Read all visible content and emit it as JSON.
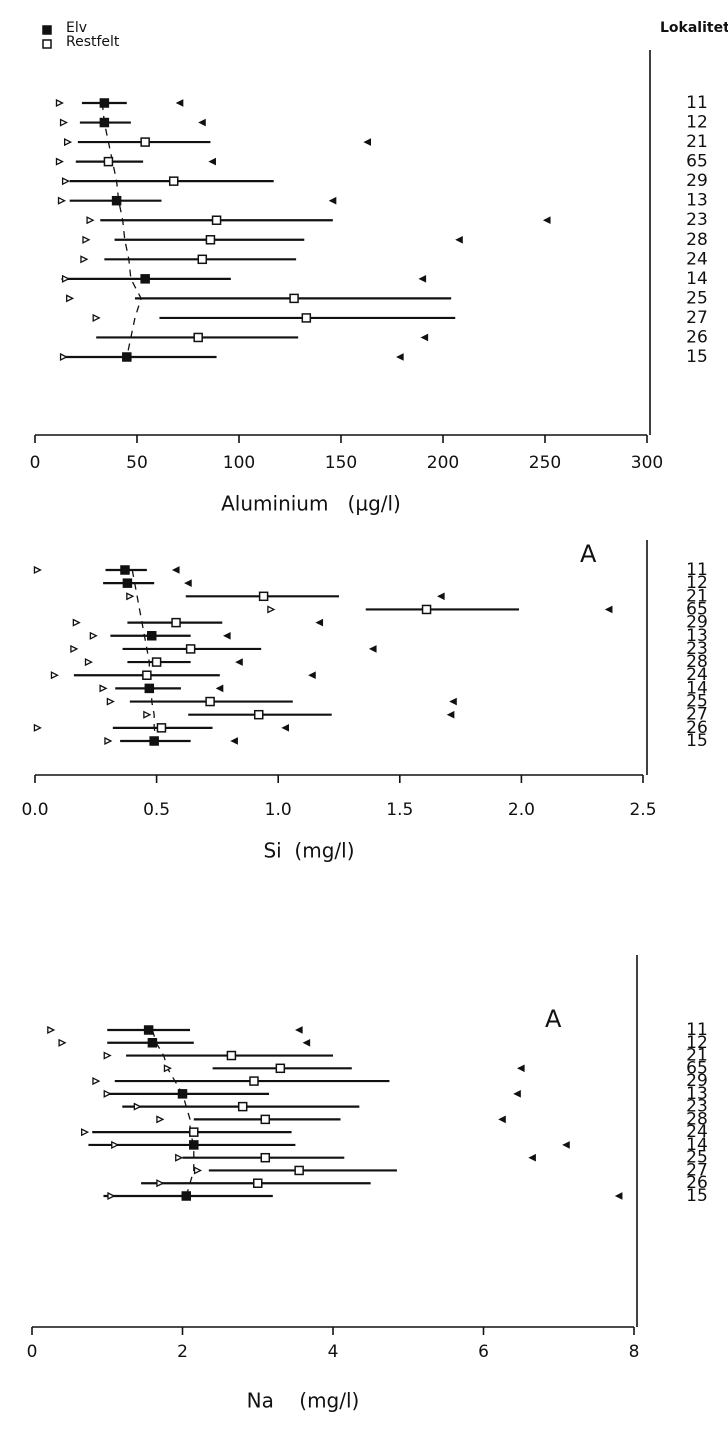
{
  "chart_data": [
    {
      "type": "range_dot",
      "category_label": "Lokalitet",
      "xlabel": "Aluminium   (µg/l)",
      "legend": [
        {
          "label": "Elv",
          "filled": true
        },
        {
          "label": "Restfelt",
          "filled": false
        }
      ],
      "categories": [
        "11",
        "12",
        "21",
        "65",
        "29",
        "13",
        "23",
        "28",
        "24",
        "14",
        "25",
        "27",
        "26",
        "15"
      ],
      "filled": [
        true,
        true,
        false,
        false,
        false,
        true,
        false,
        false,
        false,
        true,
        false,
        false,
        false,
        true
      ],
      "means": [
        34,
        34,
        54,
        36,
        68,
        40,
        89,
        86,
        82,
        54,
        127,
        133,
        80,
        45
      ],
      "low": [
        23,
        22,
        21,
        20,
        17,
        17,
        32,
        39,
        34,
        13,
        49,
        61,
        30,
        13
      ],
      "high": [
        45,
        47,
        86,
        53,
        117,
        62,
        146,
        132,
        128,
        96,
        204,
        206,
        129,
        89
      ],
      "min": [
        12,
        14,
        16,
        12,
        15,
        13,
        27,
        25,
        24,
        15,
        17,
        30,
        null,
        14
      ],
      "max": [
        71,
        82,
        163,
        87,
        null,
        146,
        251,
        208,
        null,
        190,
        null,
        null,
        191,
        179
      ],
      "trend": [
        33,
        34,
        36,
        38,
        40,
        41,
        43,
        44,
        46,
        47,
        52,
        49,
        47,
        45
      ],
      "xlim": [
        0,
        300
      ],
      "xticks": [
        0,
        50,
        100,
        150,
        200,
        250,
        300
      ]
    },
    {
      "type": "range_dot",
      "xlabel": "Si  (mg/l)",
      "annotation": "A",
      "categories": [
        "11",
        "12",
        "21",
        "65",
        "29",
        "13",
        "23",
        "28",
        "24",
        "14",
        "25",
        "27",
        "26",
        "15"
      ],
      "filled": [
        true,
        true,
        false,
        false,
        false,
        true,
        false,
        false,
        false,
        true,
        false,
        false,
        false,
        true
      ],
      "means": [
        0.37,
        0.38,
        0.94,
        1.61,
        0.58,
        0.48,
        0.64,
        0.5,
        0.46,
        0.47,
        0.72,
        0.92,
        0.52,
        0.49
      ],
      "low": [
        0.29,
        0.28,
        0.62,
        1.36,
        0.38,
        0.31,
        0.36,
        0.38,
        0.16,
        0.33,
        0.39,
        0.63,
        0.32,
        0.35
      ],
      "high": [
        0.46,
        0.49,
        1.25,
        1.99,
        0.77,
        0.64,
        0.93,
        0.64,
        0.76,
        0.6,
        1.06,
        1.22,
        0.73,
        0.64
      ],
      "min": [
        0.01,
        null,
        0.39,
        0.97,
        0.17,
        0.24,
        0.16,
        0.22,
        0.08,
        0.28,
        0.31,
        0.46,
        0.01,
        0.3
      ],
      "max": [
        0.58,
        0.63,
        1.67,
        2.36,
        1.17,
        0.79,
        1.39,
        0.84,
        1.14,
        0.76,
        1.72,
        1.71,
        1.03,
        0.82
      ],
      "trend": [
        0.4,
        0.41,
        0.42,
        0.43,
        0.44,
        0.45,
        0.46,
        0.47,
        0.47,
        0.48,
        0.48,
        0.49,
        0.49,
        0.5
      ],
      "xlim": [
        0,
        2.5
      ],
      "xticks": [
        {
          "value": 0,
          "label": "0.0"
        },
        0.5,
        {
          "value": 1,
          "label": "1.0"
        },
        1.5,
        {
          "value": 2,
          "label": "2.0"
        },
        2.5
      ]
    },
    {
      "type": "range_dot",
      "xlabel": "Na    (mg/l)",
      "annotation": "A",
      "categories": [
        "11",
        "12",
        "21",
        "65",
        "29",
        "13",
        "23",
        "28",
        "24",
        "14",
        "25",
        "27",
        "26",
        "15"
      ],
      "filled": [
        true,
        true,
        false,
        false,
        false,
        true,
        false,
        false,
        false,
        true,
        false,
        false,
        false,
        true
      ],
      "means": [
        1.55,
        1.6,
        2.65,
        3.3,
        2.95,
        2.0,
        2.8,
        3.1,
        2.15,
        2.15,
        3.1,
        3.55,
        3.0,
        2.05
      ],
      "low": [
        1.0,
        1.0,
        1.25,
        2.4,
        1.1,
        1.0,
        1.2,
        2.15,
        0.8,
        0.75,
        2.0,
        2.35,
        1.45,
        0.95
      ],
      "high": [
        2.1,
        2.15,
        4.0,
        4.25,
        4.75,
        3.15,
        4.35,
        4.1,
        3.45,
        3.5,
        4.15,
        4.85,
        4.5,
        3.2
      ],
      "min": [
        0.25,
        0.4,
        1.0,
        1.8,
        0.85,
        1.0,
        1.4,
        1.7,
        0.7,
        1.1,
        1.95,
        2.2,
        1.7,
        1.05
      ],
      "max": [
        3.55,
        3.65,
        null,
        6.5,
        null,
        6.45,
        null,
        6.25,
        null,
        7.1,
        6.65,
        null,
        null,
        7.8
      ],
      "trend": [
        1.6,
        1.65,
        1.75,
        1.8,
        1.9,
        2.0,
        2.05,
        2.1,
        2.1,
        2.15,
        2.15,
        2.15,
        2.1,
        2.05
      ],
      "xlim": [
        0,
        8
      ],
      "xticks": [
        0,
        2,
        4,
        6,
        8
      ]
    }
  ]
}
